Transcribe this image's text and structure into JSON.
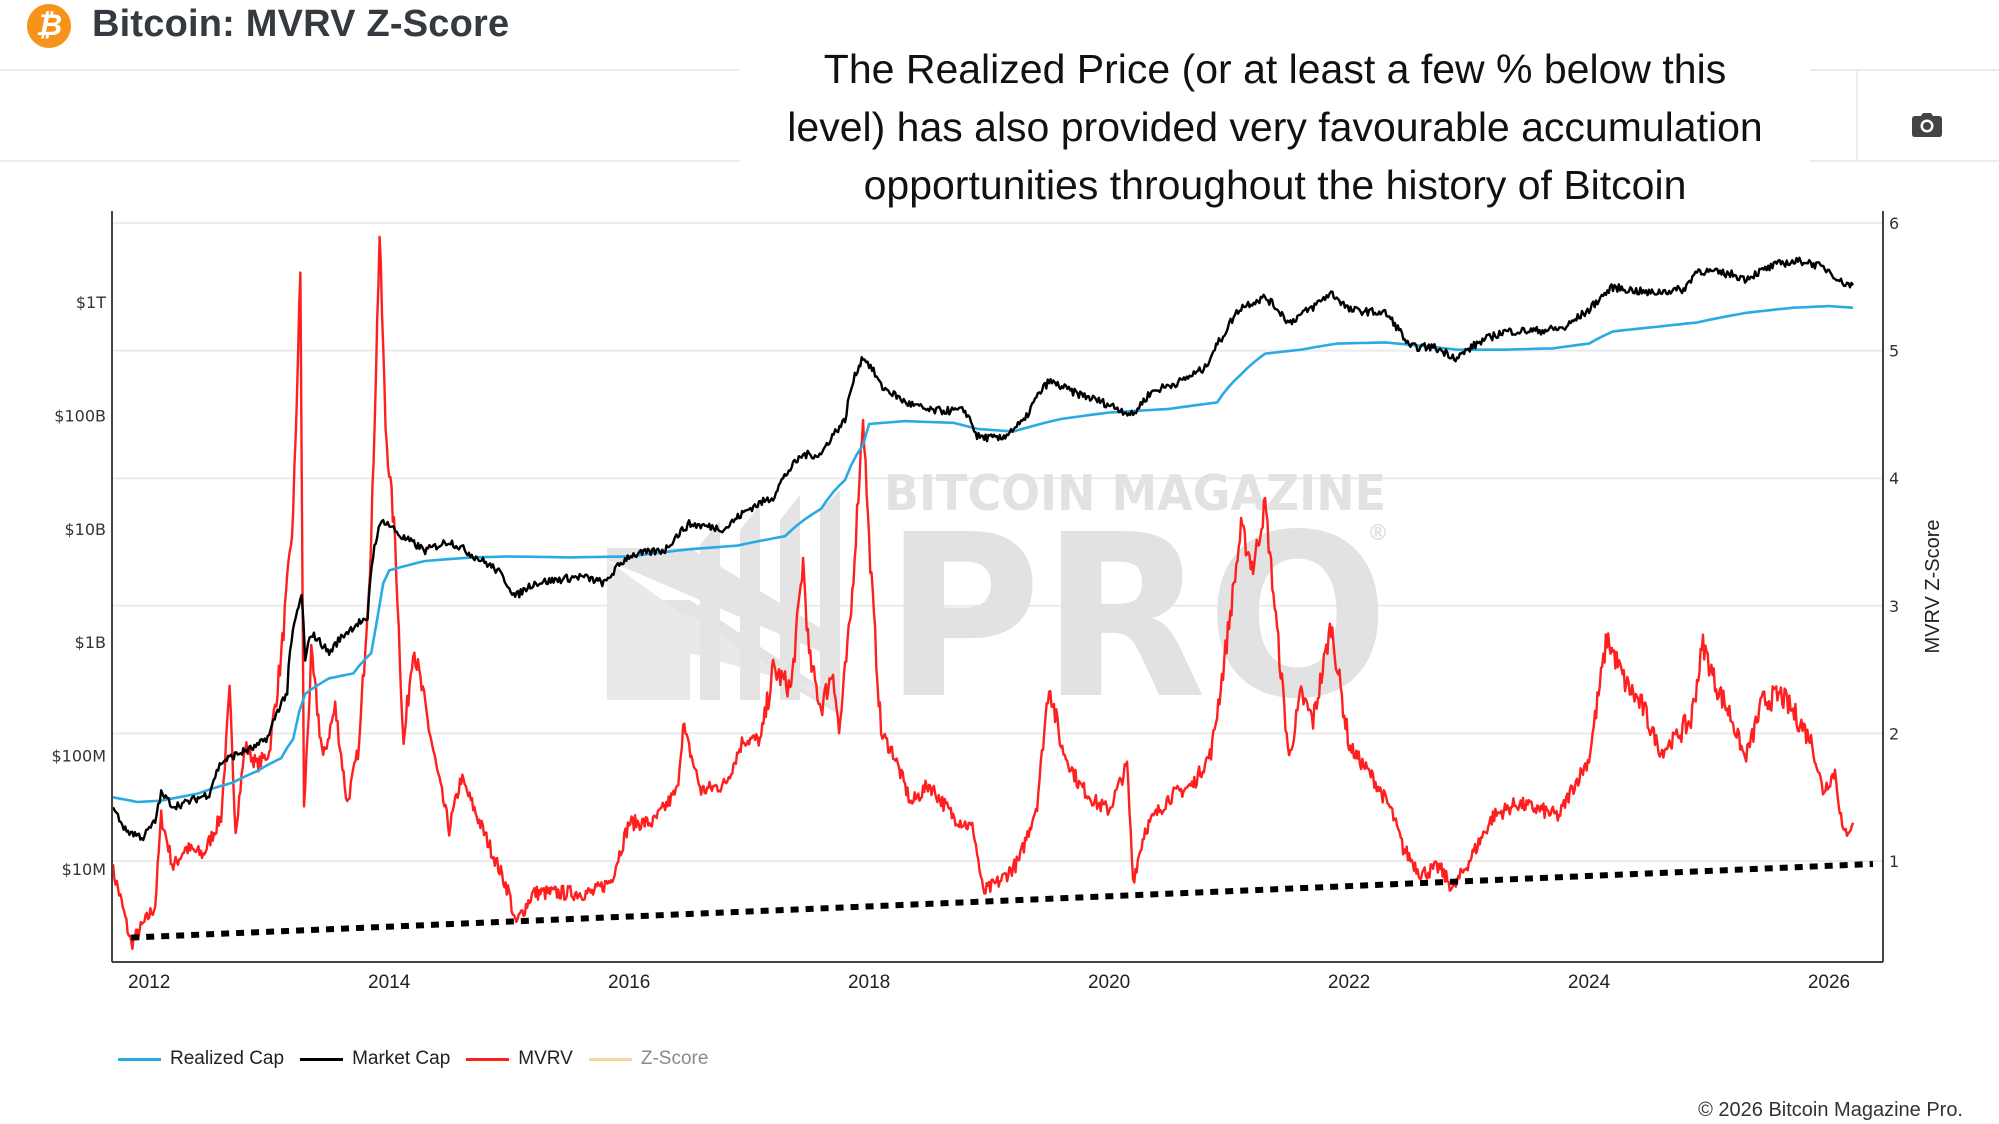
{
  "header": {
    "title": "Bitcoin: MVRV Z-Score",
    "logo_icon": "bitcoin-icon",
    "logo_glyph": "₿"
  },
  "toolbar": {
    "camera_icon": "camera-icon"
  },
  "annotation": {
    "lines": [
      "The Realized Price (or at least a few % below this",
      "level) has also provided very favourable accumulation",
      "opportunities throughout the history of Bitcoin"
    ]
  },
  "watermark": {
    "line1": "BITCOIN MAGAZINE",
    "line2": "PRO",
    "mark": "®"
  },
  "colors": {
    "realized_cap": "#29abe2",
    "market_cap": "#000000",
    "mvrv": "#ff1f1f",
    "z_score": "#fcd5a4",
    "bitcoin_orange": "#f7931a",
    "trendline": "#000000"
  },
  "legend": [
    {
      "label": "Realized Cap",
      "color": "#29abe2",
      "visible": true
    },
    {
      "label": "Market Cap",
      "color": "#000000",
      "visible": true
    },
    {
      "label": "MVRV",
      "color": "#ff1f1f",
      "visible": true
    },
    {
      "label": "Z-Score",
      "color": "#fcd5a4",
      "visible": false
    }
  ],
  "copyright": "© 2026 Bitcoin Magazine Pro.",
  "chart_data": {
    "type": "line",
    "title": "Bitcoin: MVRV Z-Score",
    "xlabel": "",
    "ylabel_left": "",
    "ylabel_right": "MVRV Z-Score",
    "x_ticks": [
      "2012",
      "2014",
      "2016",
      "2018",
      "2020",
      "2022",
      "2024",
      "2026"
    ],
    "xlim": [
      2011.69,
      2026.45
    ],
    "y_left": {
      "scale": "log",
      "ticks": [
        {
          "value": 10000000,
          "label": "$10M"
        },
        {
          "value": 100000000,
          "label": "$100M"
        },
        {
          "value": 1000000000,
          "label": "$1B"
        },
        {
          "value": 10000000000,
          "label": "$10B"
        },
        {
          "value": 100000000000,
          "label": "$100B"
        },
        {
          "value": 1000000000000,
          "label": "$1T"
        }
      ]
    },
    "y_right": {
      "scale": "linear",
      "ticks": [
        "1",
        "2",
        "3",
        "4",
        "5",
        "6"
      ],
      "ylim": [
        0.0,
        6.12
      ]
    },
    "grid": true,
    "legend_position": "bottom-left",
    "series": [
      {
        "name": "Realized Cap",
        "axis": "left",
        "points": [
          [
            2011.69,
            43000000.0
          ],
          [
            2011.9,
            39000000.0
          ],
          [
            2012.1,
            40000000.0
          ],
          [
            2012.4,
            46000000.0
          ],
          [
            2012.7,
            58000000.0
          ],
          [
            2012.9,
            73000000.0
          ],
          [
            2013.1,
            95000000.0
          ],
          [
            2013.2,
            140000000.0
          ],
          [
            2013.3,
            350000000.0
          ],
          [
            2013.5,
            480000000.0
          ],
          [
            2013.7,
            530000000.0
          ],
          [
            2013.85,
            800000000.0
          ],
          [
            2013.9,
            1600000000.0
          ],
          [
            2013.95,
            3300000000.0
          ],
          [
            2014.0,
            4300000000.0
          ],
          [
            2014.3,
            5200000000.0
          ],
          [
            2014.7,
            5600000000.0
          ],
          [
            2015.0,
            5700000000.0
          ],
          [
            2015.5,
            5600000000.0
          ],
          [
            2016.0,
            5700000000.0
          ],
          [
            2016.5,
            6600000000.0
          ],
          [
            2016.9,
            7100000000.0
          ],
          [
            2017.3,
            8600000000.0
          ],
          [
            2017.6,
            15000000000.0
          ],
          [
            2017.8,
            27000000000.0
          ],
          [
            2017.95,
            55000000000.0
          ],
          [
            2018.0,
            84000000000.0
          ],
          [
            2018.3,
            89000000000.0
          ],
          [
            2018.7,
            86000000000.0
          ],
          [
            2018.9,
            76000000000.0
          ],
          [
            2019.2,
            72000000000.0
          ],
          [
            2019.6,
            93000000000.0
          ],
          [
            2020.0,
            106000000000.0
          ],
          [
            2020.5,
            114000000000.0
          ],
          [
            2020.9,
            130000000000.0
          ],
          [
            2021.1,
            230000000000.0
          ],
          [
            2021.3,
            350000000000.0
          ],
          [
            2021.6,
            380000000000.0
          ],
          [
            2021.9,
            430000000000.0
          ],
          [
            2022.3,
            440000000000.0
          ],
          [
            2022.6,
            410000000000.0
          ],
          [
            2022.9,
            380000000000.0
          ],
          [
            2023.3,
            380000000000.0
          ],
          [
            2023.7,
            390000000000.0
          ],
          [
            2024.0,
            430000000000.0
          ],
          [
            2024.2,
            550000000000.0
          ],
          [
            2024.6,
            610000000000.0
          ],
          [
            2024.9,
            660000000000.0
          ],
          [
            2025.3,
            800000000000.0
          ],
          [
            2025.7,
            890000000000.0
          ],
          [
            2026.0,
            920000000000.0
          ],
          [
            2026.2,
            890000000000.0
          ]
        ]
      },
      {
        "name": "Market Cap",
        "axis": "left",
        "points": [
          [
            2011.69,
            35000000.0
          ],
          [
            2011.8,
            22000000.0
          ],
          [
            2011.95,
            19000000.0
          ],
          [
            2012.05,
            26000000.0
          ],
          [
            2012.1,
            46000000.0
          ],
          [
            2012.2,
            36000000.0
          ],
          [
            2012.3,
            38000000.0
          ],
          [
            2012.5,
            46000000.0
          ],
          [
            2012.6,
            87000000.0
          ],
          [
            2012.75,
            105000000.0
          ],
          [
            2012.9,
            120000000.0
          ],
          [
            2013.0,
            150000000.0
          ],
          [
            2013.15,
            360000000.0
          ],
          [
            2013.27,
            2500000000.0
          ],
          [
            2013.3,
            660000000.0
          ],
          [
            2013.35,
            1200000000.0
          ],
          [
            2013.5,
            800000000.0
          ],
          [
            2013.6,
            1100000000.0
          ],
          [
            2013.75,
            1500000000.0
          ],
          [
            2013.82,
            1500000000.0
          ],
          [
            2013.9,
            9000000000.0
          ],
          [
            2013.95,
            12000000000.0
          ],
          [
            2014.1,
            8500000000.0
          ],
          [
            2014.3,
            6400000000.0
          ],
          [
            2014.5,
            7800000000.0
          ],
          [
            2014.7,
            5800000000.0
          ],
          [
            2014.9,
            4300000000.0
          ],
          [
            2015.05,
            2500000000.0
          ],
          [
            2015.2,
            3300000000.0
          ],
          [
            2015.6,
            3800000000.0
          ],
          [
            2015.8,
            3300000000.0
          ],
          [
            2016.0,
            5800000000.0
          ],
          [
            2016.3,
            6500000000.0
          ],
          [
            2016.5,
            11000000000.0
          ],
          [
            2016.8,
            10000000000.0
          ],
          [
            2017.0,
            15000000000.0
          ],
          [
            2017.2,
            19000000000.0
          ],
          [
            2017.45,
            45000000000.0
          ],
          [
            2017.6,
            45000000000.0
          ],
          [
            2017.8,
            90000000000.0
          ],
          [
            2017.95,
            330000000000.0
          ],
          [
            2018.1,
            180000000000.0
          ],
          [
            2018.3,
            130000000000.0
          ],
          [
            2018.5,
            110000000000.0
          ],
          [
            2018.8,
            110000000000.0
          ],
          [
            2018.9,
            65000000000.0
          ],
          [
            2019.1,
            62000000000.0
          ],
          [
            2019.3,
            90000000000.0
          ],
          [
            2019.5,
            200000000000.0
          ],
          [
            2019.7,
            160000000000.0
          ],
          [
            2019.95,
            130000000000.0
          ],
          [
            2020.2,
            100000000000.0
          ],
          [
            2020.35,
            160000000000.0
          ],
          [
            2020.6,
            200000000000.0
          ],
          [
            2020.8,
            260000000000.0
          ],
          [
            2020.95,
            500000000000.0
          ],
          [
            2021.1,
            900000000000.0
          ],
          [
            2021.3,
            1100000000000.0
          ],
          [
            2021.5,
            650000000000.0
          ],
          [
            2021.7,
            900000000000.0
          ],
          [
            2021.85,
            1200000000000.0
          ],
          [
            2022.0,
            850000000000.0
          ],
          [
            2022.3,
            800000000000.0
          ],
          [
            2022.5,
            400000000000.0
          ],
          [
            2022.7,
            400000000000.0
          ],
          [
            2022.9,
            320000000000.0
          ],
          [
            2023.1,
            450000000000.0
          ],
          [
            2023.3,
            550000000000.0
          ],
          [
            2023.6,
            560000000000.0
          ],
          [
            2023.8,
            590000000000.0
          ],
          [
            2024.0,
            850000000000.0
          ],
          [
            2024.2,
            1350000000000.0
          ],
          [
            2024.5,
            1200000000000.0
          ],
          [
            2024.8,
            1300000000000.0
          ],
          [
            2024.9,
            1900000000000.0
          ],
          [
            2025.2,
            1750000000000.0
          ],
          [
            2025.3,
            1600000000000.0
          ],
          [
            2025.6,
            2200000000000.0
          ],
          [
            2025.8,
            2300000000000.0
          ],
          [
            2026.0,
            1900000000000.0
          ],
          [
            2026.1,
            1500000000000.0
          ],
          [
            2026.2,
            1400000000000.0
          ]
        ]
      },
      {
        "name": "MVRV",
        "axis": "right",
        "points": [
          [
            2011.69,
            0.95
          ],
          [
            2011.75,
            0.75
          ],
          [
            2011.85,
            0.35
          ],
          [
            2011.95,
            0.5
          ],
          [
            2012.05,
            0.65
          ],
          [
            2012.1,
            1.35
          ],
          [
            2012.2,
            0.95
          ],
          [
            2012.3,
            1.1
          ],
          [
            2012.45,
            1.05
          ],
          [
            2012.6,
            1.35
          ],
          [
            2012.67,
            2.3
          ],
          [
            2012.72,
            1.25
          ],
          [
            2012.8,
            1.9
          ],
          [
            2012.9,
            1.75
          ],
          [
            2013.0,
            1.85
          ],
          [
            2013.1,
            2.6
          ],
          [
            2013.2,
            3.7
          ],
          [
            2013.26,
            5.6
          ],
          [
            2013.29,
            1.4
          ],
          [
            2013.35,
            2.6
          ],
          [
            2013.45,
            1.8
          ],
          [
            2013.55,
            2.2
          ],
          [
            2013.65,
            1.45
          ],
          [
            2013.75,
            1.9
          ],
          [
            2013.85,
            3.5
          ],
          [
            2013.92,
            5.9
          ],
          [
            2013.97,
            4.4
          ],
          [
            2014.05,
            3.5
          ],
          [
            2014.12,
            1.9
          ],
          [
            2014.2,
            2.7
          ],
          [
            2014.3,
            2.2
          ],
          [
            2014.4,
            1.7
          ],
          [
            2014.5,
            1.25
          ],
          [
            2014.6,
            1.65
          ],
          [
            2014.8,
            1.2
          ],
          [
            2015.0,
            0.75
          ],
          [
            2015.05,
            0.5
          ],
          [
            2015.2,
            0.75
          ],
          [
            2015.5,
            0.75
          ],
          [
            2015.7,
            0.75
          ],
          [
            2015.85,
            0.85
          ],
          [
            2016.0,
            1.3
          ],
          [
            2016.2,
            1.3
          ],
          [
            2016.4,
            1.55
          ],
          [
            2016.45,
            2.05
          ],
          [
            2016.6,
            1.55
          ],
          [
            2016.8,
            1.6
          ],
          [
            2016.95,
            1.95
          ],
          [
            2017.1,
            1.95
          ],
          [
            2017.2,
            2.5
          ],
          [
            2017.35,
            2.35
          ],
          [
            2017.45,
            3.35
          ],
          [
            2017.5,
            2.6
          ],
          [
            2017.6,
            2.2
          ],
          [
            2017.7,
            2.5
          ],
          [
            2017.75,
            2.0
          ],
          [
            2017.85,
            2.95
          ],
          [
            2017.95,
            4.5
          ],
          [
            2018.0,
            3.5
          ],
          [
            2018.1,
            2.0
          ],
          [
            2018.2,
            1.85
          ],
          [
            2018.35,
            1.45
          ],
          [
            2018.5,
            1.6
          ],
          [
            2018.7,
            1.35
          ],
          [
            2018.87,
            1.25
          ],
          [
            2018.95,
            0.75
          ],
          [
            2019.1,
            0.85
          ],
          [
            2019.25,
            1.0
          ],
          [
            2019.4,
            1.45
          ],
          [
            2019.5,
            2.4
          ],
          [
            2019.6,
            1.9
          ],
          [
            2019.75,
            1.6
          ],
          [
            2019.9,
            1.45
          ],
          [
            2020.0,
            1.4
          ],
          [
            2020.15,
            1.75
          ],
          [
            2020.2,
            0.85
          ],
          [
            2020.3,
            1.25
          ],
          [
            2020.5,
            1.5
          ],
          [
            2020.7,
            1.6
          ],
          [
            2020.85,
            1.85
          ],
          [
            2020.95,
            2.5
          ],
          [
            2021.1,
            3.6
          ],
          [
            2021.2,
            3.3
          ],
          [
            2021.3,
            3.8
          ],
          [
            2021.4,
            2.8
          ],
          [
            2021.5,
            1.8
          ],
          [
            2021.6,
            2.3
          ],
          [
            2021.7,
            2.1
          ],
          [
            2021.85,
            2.85
          ],
          [
            2022.0,
            1.9
          ],
          [
            2022.2,
            1.65
          ],
          [
            2022.35,
            1.4
          ],
          [
            2022.45,
            1.1
          ],
          [
            2022.6,
            0.9
          ],
          [
            2022.75,
            0.95
          ],
          [
            2022.87,
            0.78
          ],
          [
            2023.0,
            1.0
          ],
          [
            2023.2,
            1.35
          ],
          [
            2023.4,
            1.45
          ],
          [
            2023.6,
            1.4
          ],
          [
            2023.75,
            1.35
          ],
          [
            2023.85,
            1.55
          ],
          [
            2024.0,
            1.8
          ],
          [
            2024.15,
            2.75
          ],
          [
            2024.3,
            2.4
          ],
          [
            2024.45,
            2.2
          ],
          [
            2024.6,
            1.85
          ],
          [
            2024.75,
            2.0
          ],
          [
            2024.85,
            2.1
          ],
          [
            2024.95,
            2.7
          ],
          [
            2025.05,
            2.4
          ],
          [
            2025.2,
            2.1
          ],
          [
            2025.3,
            1.8
          ],
          [
            2025.45,
            2.25
          ],
          [
            2025.6,
            2.3
          ],
          [
            2025.75,
            2.1
          ],
          [
            2025.85,
            1.95
          ],
          [
            2025.95,
            1.55
          ],
          [
            2026.05,
            1.7
          ],
          [
            2026.12,
            1.2
          ],
          [
            2026.2,
            1.3
          ]
        ]
      },
      {
        "name": "Trendline (dotted)",
        "axis": "right",
        "points": [
          [
            2011.85,
            0.4
          ],
          [
            2026.45,
            0.98
          ]
        ]
      }
    ]
  }
}
